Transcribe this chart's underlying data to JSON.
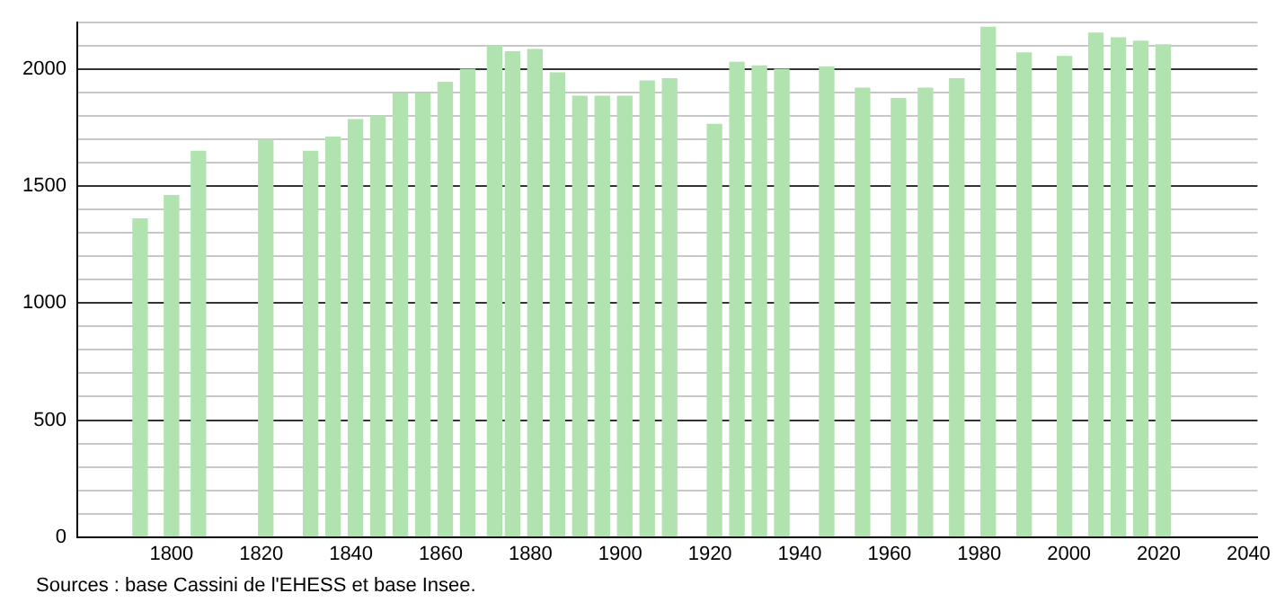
{
  "chart_data": {
    "type": "bar",
    "x": [
      1793,
      1800,
      1806,
      1821,
      1831,
      1836,
      1841,
      1846,
      1851,
      1856,
      1861,
      1866,
      1872,
      1876,
      1881,
      1886,
      1891,
      1896,
      1901,
      1906,
      1911,
      1921,
      1926,
      1931,
      1936,
      1946,
      1954,
      1962,
      1968,
      1975,
      1982,
      1990,
      1999,
      2006,
      2011,
      2016,
      2021
    ],
    "values": [
      1360,
      1460,
      1650,
      1700,
      1650,
      1710,
      1785,
      1800,
      1895,
      1895,
      1945,
      2000,
      2100,
      2075,
      2085,
      1985,
      1885,
      1885,
      1885,
      1950,
      1960,
      1765,
      2030,
      2015,
      2000,
      2010,
      1920,
      1875,
      1920,
      1960,
      2180,
      2070,
      2055,
      2155,
      2135,
      2120,
      2105
    ],
    "color": "#b0e3b0",
    "xlim": [
      1779,
      2042
    ],
    "xticks": [
      1800,
      1820,
      1840,
      1860,
      1880,
      1900,
      1920,
      1940,
      1960,
      1980,
      2000,
      2020,
      2040
    ],
    "ylim": [
      0,
      2200
    ],
    "yticks": [
      0,
      {
        "value": 100,
        "label": null
      },
      {
        "value": 200,
        "label": null
      },
      {
        "value": 300,
        "label": null
      },
      {
        "value": 400,
        "label": null
      },
      500,
      {
        "value": 600,
        "label": null
      },
      {
        "value": 700,
        "label": null
      },
      {
        "value": 800,
        "label": null
      },
      {
        "value": 900,
        "label": null
      },
      1000,
      {
        "value": 1100,
        "label": null
      },
      {
        "value": 1200,
        "label": null
      },
      {
        "value": 1300,
        "label": null
      },
      {
        "value": 1400,
        "label": null
      },
      1500,
      {
        "value": 1600,
        "label": null
      },
      {
        "value": 1700,
        "label": null
      },
      {
        "value": 1800,
        "label": null
      },
      {
        "value": 1900,
        "label": null
      },
      2000,
      {
        "value": 2100,
        "label": null
      },
      {
        "value": 2200,
        "label": null
      }
    ],
    "grid": "y",
    "legend": false,
    "annotations": [
      "Sources : base Cassini de l'EHESS et base Insee."
    ]
  }
}
